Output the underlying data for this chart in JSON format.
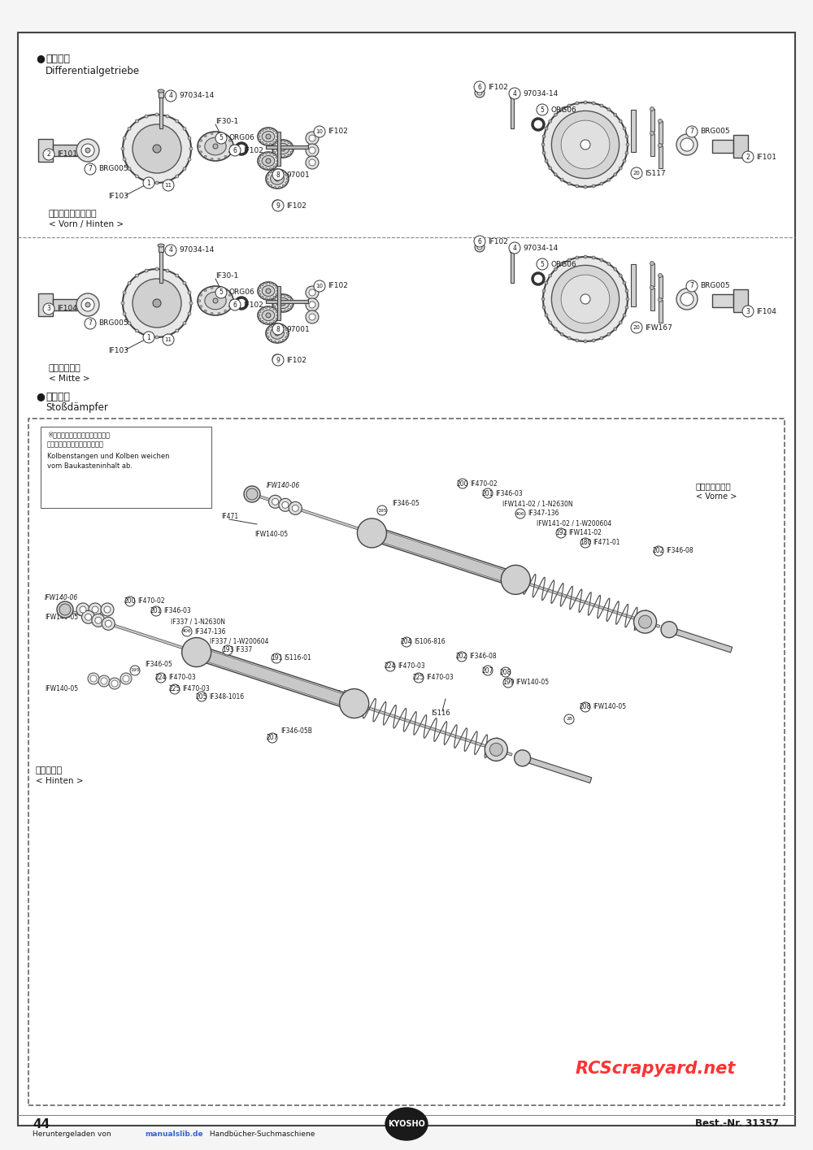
{
  "page_number": "44",
  "best_nr": "Best.-Nr. 31357",
  "bg_color": "#f5f5f5",
  "border_color": "#333333",
  "text_color": "#1a1a1a",
  "watermark_color": "#ff3333",
  "sections": {
    "title_diff_jp": "●デフギヤ",
    "title_diff_de": "Differentialgetriebe",
    "sub1_jp": "＜フロント／リヤ＞",
    "sub1_de": "< Vorn / Hinten >",
    "sub2_jp": "＜センター＞",
    "sub2_de": "< Mitte >",
    "title_damp_jp": "●ダンパー",
    "title_damp_de": "Stoßdämpfer",
    "note_jp1": "※ピストンとシャフトはセットに",
    "note_jp2": "入っているものと異なります。",
    "note_de1": "Kolbenstangen und Kolben weichen",
    "note_de2": "vom Baukasteninhalt ab.",
    "front_jp": "＜フロント用＞",
    "front_de": "< Vorne >",
    "rear_jp": "＜リヤ用＞",
    "rear_de": "< Hinten >"
  }
}
